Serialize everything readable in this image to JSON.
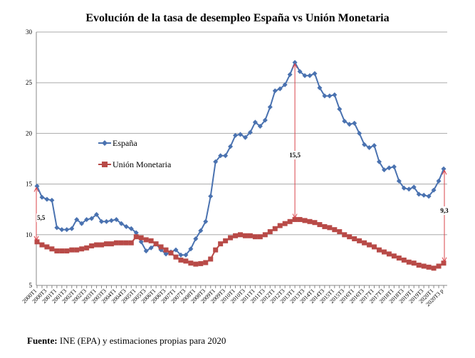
{
  "chart_data": {
    "type": "line",
    "title": "Evolución de la tasa de desempleo España vs Unión Monetaria",
    "xlabel": "",
    "ylabel": "",
    "ylim": [
      5,
      30
    ],
    "yticks": [
      5,
      10,
      15,
      20,
      25,
      30
    ],
    "grid": true,
    "legend_position": "center-left",
    "x_tick_labels": [
      "2000T1",
      "2000T3",
      "2001T1",
      "2001T3",
      "2002T1",
      "2002T3",
      "2003T1",
      "2003T3",
      "2004T1",
      "2004T3",
      "2005T1",
      "2005T3",
      "2006T1",
      "2006T3",
      "2007T1",
      "2007T3",
      "2008T1",
      "2008T3",
      "2009T1",
      "2009T3",
      "2010T1",
      "2010T3",
      "2011T1",
      "2011T3",
      "2012T1",
      "2012T3",
      "2013T1",
      "2013T3",
      "2014T1",
      "2014T3",
      "2015T1",
      "2015T3",
      "2016T1",
      "2016T3",
      "2017T1",
      "2017T3",
      "2018T1",
      "2018T3",
      "2019T1",
      "2019T3",
      "2020T1",
      "2020T3 p"
    ],
    "series": [
      {
        "name": "España",
        "color": "#4a72b0",
        "marker": "diamond",
        "values": [
          14.8,
          13.7,
          13.5,
          13.4,
          10.7,
          10.5,
          10.5,
          10.6,
          11.5,
          11.1,
          11.5,
          11.6,
          12.0,
          11.3,
          11.3,
          11.4,
          11.5,
          11.1,
          10.8,
          10.6,
          10.2,
          9.3,
          8.4,
          8.7,
          9.1,
          8.5,
          8.1,
          8.3,
          8.5,
          8.0,
          8.0,
          8.6,
          9.6,
          10.4,
          11.3,
          13.8,
          17.2,
          17.8,
          17.8,
          18.7,
          19.8,
          19.9,
          19.6,
          20.1,
          21.1,
          20.7,
          21.3,
          22.6,
          24.2,
          24.4,
          24.8,
          25.8,
          27.0,
          26.1,
          25.7,
          25.7,
          25.9,
          24.5,
          23.7,
          23.7,
          23.8,
          22.4,
          21.2,
          20.9,
          21.0,
          20.0,
          18.9,
          18.6,
          18.8,
          17.2,
          16.4,
          16.6,
          16.7,
          15.3,
          14.6,
          14.5,
          14.7,
          14.0,
          13.9,
          13.8,
          14.4,
          15.3,
          16.5
        ]
      },
      {
        "name": "Unión Monetaria",
        "color": "#b84a47",
        "marker": "square",
        "values": [
          9.3,
          9.0,
          8.8,
          8.6,
          8.4,
          8.4,
          8.4,
          8.5,
          8.5,
          8.6,
          8.7,
          8.9,
          9.0,
          9.0,
          9.1,
          9.1,
          9.2,
          9.2,
          9.2,
          9.2,
          9.8,
          9.7,
          9.5,
          9.4,
          9.1,
          8.8,
          8.5,
          8.2,
          7.8,
          7.5,
          7.4,
          7.2,
          7.1,
          7.15,
          7.25,
          7.6,
          8.5,
          9.1,
          9.4,
          9.7,
          9.9,
          10.0,
          9.9,
          9.9,
          9.8,
          9.8,
          10.0,
          10.3,
          10.6,
          10.9,
          11.1,
          11.3,
          11.5,
          11.5,
          11.4,
          11.3,
          11.2,
          11.0,
          10.8,
          10.7,
          10.5,
          10.3,
          10.0,
          9.8,
          9.6,
          9.4,
          9.2,
          9.0,
          8.8,
          8.5,
          8.3,
          8.1,
          7.9,
          7.7,
          7.5,
          7.3,
          7.2,
          7.0,
          6.9,
          6.8,
          6.7,
          6.9,
          7.2
        ]
      }
    ],
    "annotations": [
      {
        "text": "5,5",
        "at": "2000T1"
      },
      {
        "text": "15,5",
        "at": "2013T1"
      },
      {
        "text": "9,3",
        "at": "2020T3 p"
      }
    ],
    "annotation_color": "#d9434a"
  },
  "footer": {
    "label": "Fuente:",
    "text": " INE (EPA) y estimaciones propias para 2020"
  }
}
